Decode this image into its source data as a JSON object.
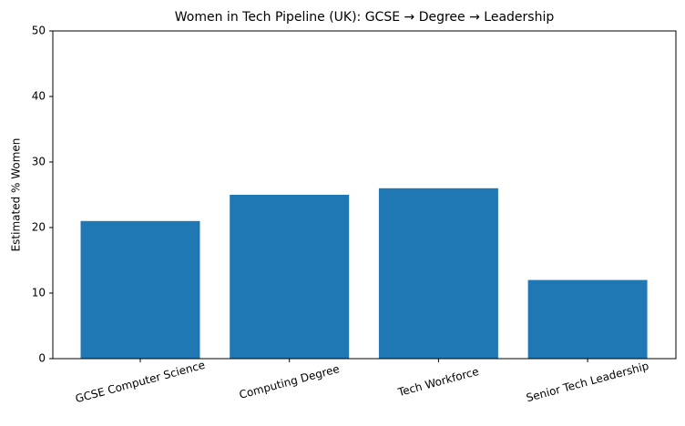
{
  "chart_data": {
    "type": "bar",
    "title": "Women in Tech Pipeline (UK): GCSE → Degree → Leadership",
    "y_label": "Estimated % Women",
    "categories": [
      "GCSE Computer Science",
      "Computing Degree",
      "Tech Workforce",
      "Senior Tech Leadership"
    ],
    "values": [
      21,
      25,
      26,
      12
    ],
    "color": "#1f77b4",
    "ylim": [
      0,
      50
    ],
    "yticks": [
      0,
      10,
      20,
      30,
      40,
      50
    ],
    "grid": false
  }
}
